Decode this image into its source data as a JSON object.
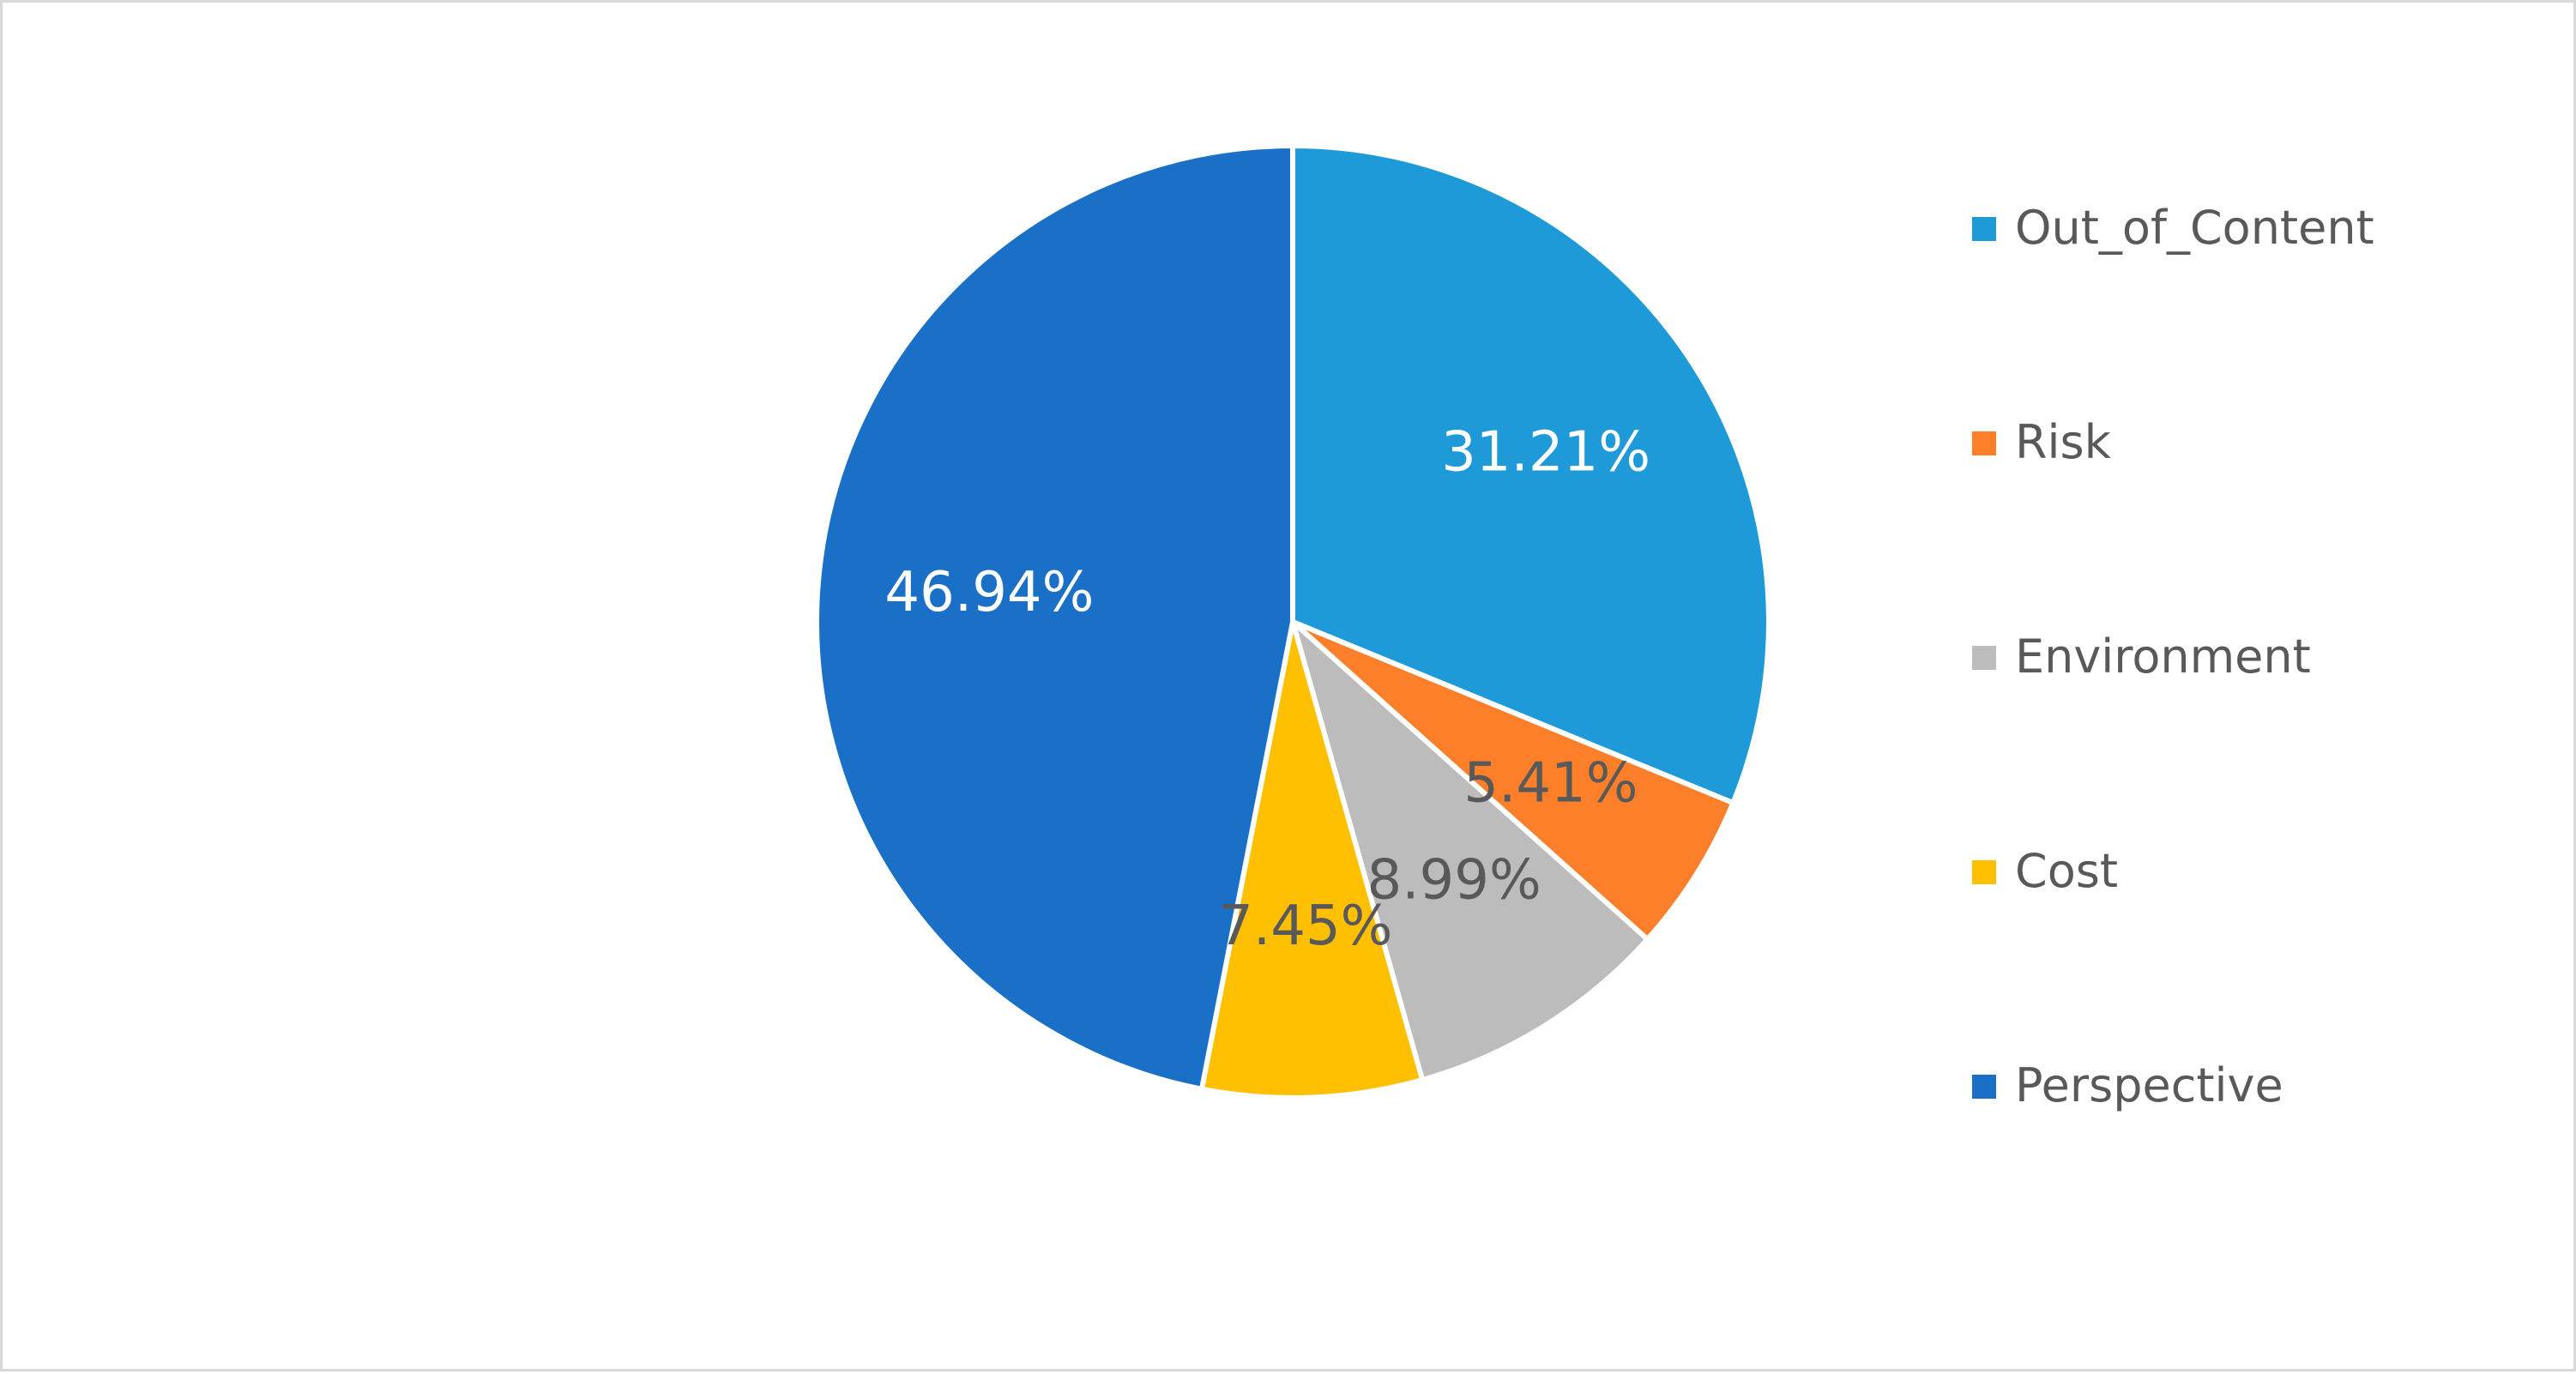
{
  "chart_data": {
    "type": "pie",
    "categories": [
      "Out_of_Content",
      "Risk",
      "Environment",
      "Cost",
      "Perspective"
    ],
    "values": [
      31.21,
      5.41,
      8.99,
      7.45,
      46.94
    ],
    "labels": [
      "31.21%",
      "5.41%",
      "8.99%",
      "7.45%",
      "46.94%"
    ],
    "colors": [
      "#1f9ad9",
      "#fd7f29",
      "#bcbcbc",
      "#fec000",
      "#1a70c7"
    ],
    "label_colors": [
      "#ffffff",
      "#595959",
      "#595959",
      "#595959",
      "#ffffff"
    ],
    "start_angle_deg": 0,
    "direction": "clockwise",
    "legend_position": "right",
    "title": ""
  },
  "legend": {
    "items": [
      {
        "label": "Out_of_Content",
        "color": "#1f9ad9"
      },
      {
        "label": "Risk",
        "color": "#fd7f29"
      },
      {
        "label": "Environment",
        "color": "#bcbcbc"
      },
      {
        "label": "Cost",
        "color": "#fec000"
      },
      {
        "label": "Perspective",
        "color": "#1a70c7"
      }
    ]
  }
}
